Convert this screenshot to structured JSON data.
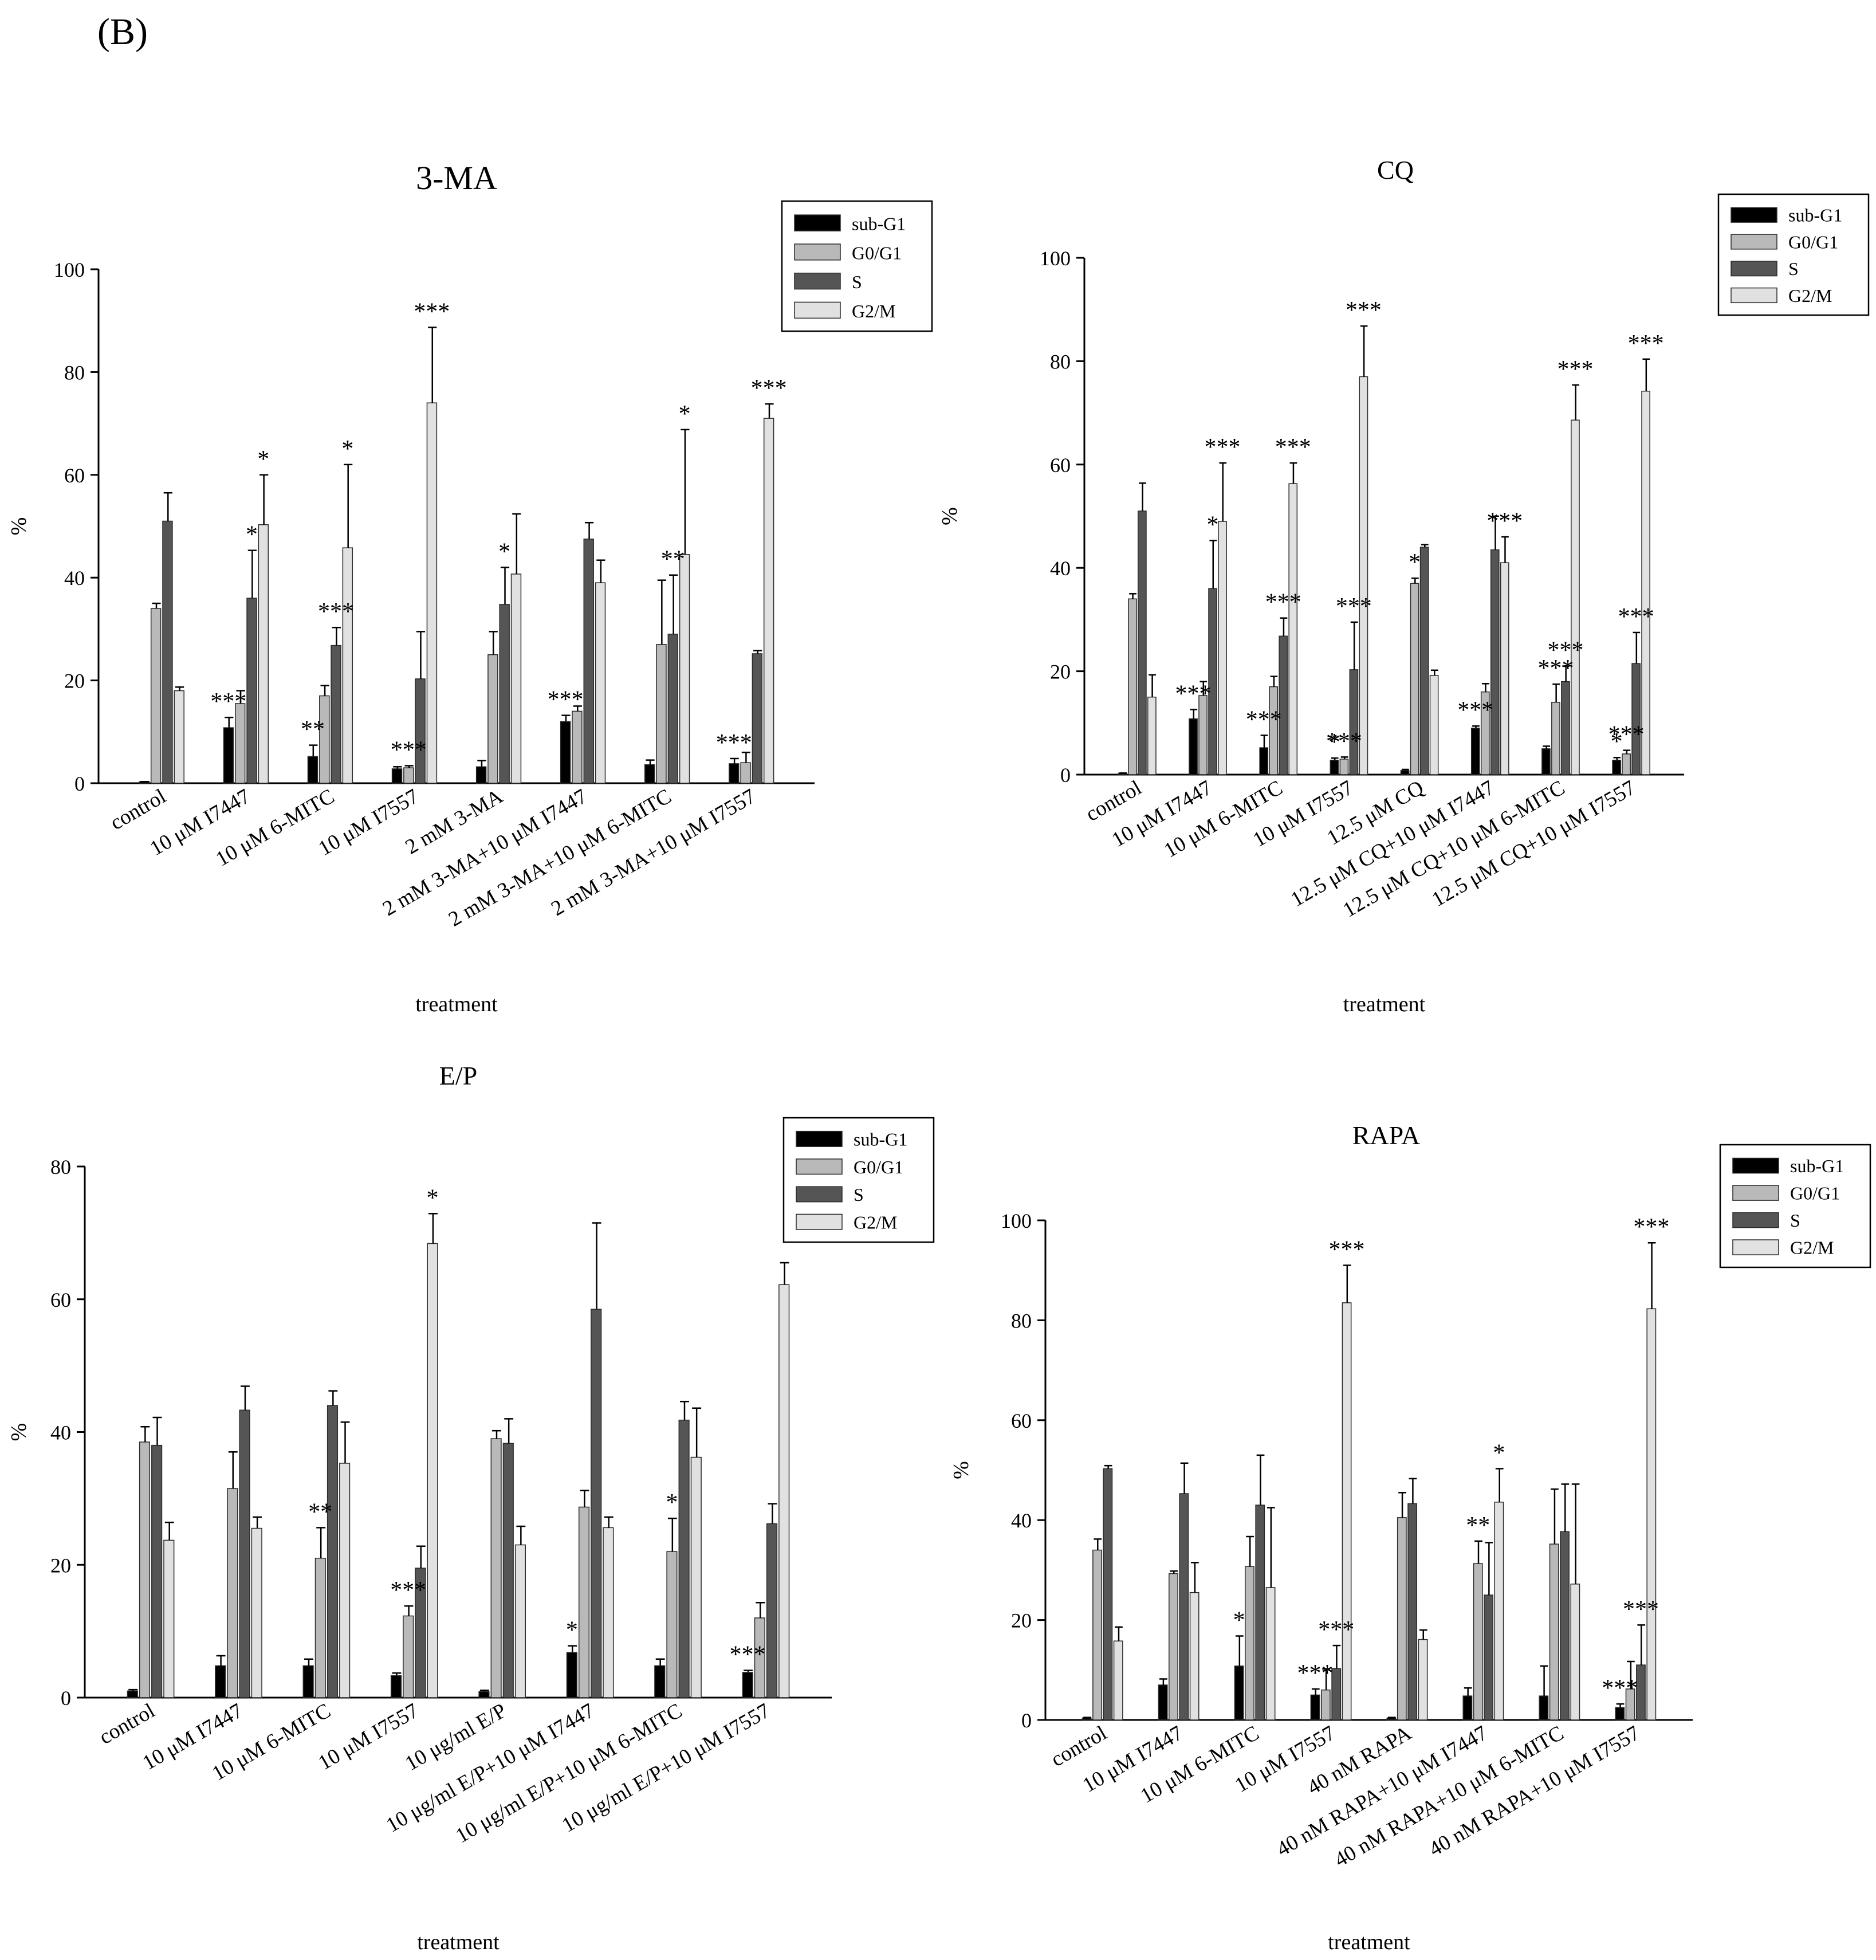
{
  "panel_label": "(B)",
  "colors": {
    "sub-G1": "#000000",
    "G0/G1": "#b9b9b9",
    "S": "#555555",
    "G2/M": "#e1e1e1",
    "stroke": "#2a2a2a"
  },
  "chart_data": [
    {
      "type": "bar",
      "title": "3-MA",
      "xlabel": "treatment",
      "ylabel": "%",
      "ylim": [
        0,
        100
      ],
      "yticks": [
        0,
        20,
        40,
        60,
        80,
        100
      ],
      "legend_position": "top-right",
      "legend": [
        "sub-G1",
        "G0/G1",
        "S",
        "G2/M"
      ],
      "categories": [
        "control",
        "10 μM I7447",
        "10 μM 6-MITC",
        "10 μM I7557",
        "2 mM 3-MA",
        "2 mM 3-MA+10 μM I7447",
        "2 mM 3-MA+10 μM 6-MITC",
        "2 mM 3-MA+10 μM I7557"
      ],
      "series": [
        {
          "name": "sub-G1",
          "values": [
            0.3,
            10.8,
            5.2,
            2.8,
            3.2,
            12.0,
            3.6,
            3.8
          ],
          "errors": [
            0,
            2,
            2.2,
            0.4,
            1.2,
            1.2,
            0.9,
            1.0
          ]
        },
        {
          "name": "G0/G1",
          "values": [
            34,
            15.5,
            17,
            3,
            25,
            14,
            27,
            4
          ],
          "errors": [
            1,
            2.5,
            2,
            0.4,
            4.5,
            1,
            12.5,
            2
          ]
        },
        {
          "name": "S",
          "values": [
            51,
            36,
            26.8,
            20.3,
            34.8,
            47.5,
            29,
            25.2
          ],
          "errors": [
            5.5,
            9.3,
            3.5,
            9.2,
            7.2,
            3.2,
            11.5,
            0.6
          ]
        },
        {
          "name": "G2/M",
          "values": [
            18,
            50.3,
            45.8,
            74,
            40.7,
            39,
            44.5,
            71
          ],
          "errors": [
            0.7,
            9.7,
            16.2,
            14.7,
            11.7,
            4.4,
            24.3,
            2.8
          ]
        }
      ],
      "annotations": [
        {
          "category": 1,
          "series": 0,
          "text": "***"
        },
        {
          "category": 1,
          "series": 2,
          "text": "*"
        },
        {
          "category": 1,
          "series": 3,
          "text": "*"
        },
        {
          "category": 2,
          "series": 0,
          "text": "**"
        },
        {
          "category": 2,
          "series": 2,
          "text": "***"
        },
        {
          "category": 2,
          "series": 3,
          "text": "*"
        },
        {
          "category": 3,
          "series": 1,
          "text": "***"
        },
        {
          "category": 3,
          "series": 3,
          "text": "***"
        },
        {
          "category": 4,
          "series": 2,
          "text": "*"
        },
        {
          "category": 5,
          "series": 0,
          "text": "***"
        },
        {
          "category": 6,
          "series": 2,
          "text": "**"
        },
        {
          "category": 6,
          "series": 3,
          "text": "*"
        },
        {
          "category": 7,
          "series": 0,
          "text": "***"
        },
        {
          "category": 7,
          "series": 3,
          "text": "***"
        }
      ]
    },
    {
      "type": "bar",
      "title": "CQ",
      "xlabel": "treatment",
      "ylabel": "%",
      "ylim": [
        0,
        100
      ],
      "yticks": [
        0,
        20,
        40,
        60,
        80,
        100
      ],
      "legend_position": "top-right",
      "legend": [
        "sub-G1",
        "G0/G1",
        "S",
        "G2/M"
      ],
      "categories": [
        "control",
        "10 μM I7447",
        "10 μM 6-MITC",
        "10 μM I7557",
        "12.5 μM CQ",
        "12.5 μM CQ+10 μM I7447",
        "12.5 μM CQ+10 μM 6-MITC",
        "12.5 μM CQ+10 μM I7557"
      ],
      "series": [
        {
          "name": "sub-G1",
          "values": [
            0.3,
            10.8,
            5.2,
            2.8,
            0.8,
            9.0,
            5.0,
            2.8
          ],
          "errors": [
            0,
            1.8,
            2.4,
            0.4,
            0.2,
            0.4,
            0.5,
            0.5
          ]
        },
        {
          "name": "G0/G1",
          "values": [
            34,
            15.3,
            17,
            3,
            37,
            16,
            14,
            4
          ],
          "errors": [
            1,
            2.7,
            2,
            0.4,
            1,
            1.6,
            3.5,
            0.7
          ]
        },
        {
          "name": "S",
          "values": [
            51,
            36,
            26.8,
            20.3,
            44,
            43.5,
            18,
            21.5
          ],
          "errors": [
            5.4,
            9.3,
            3.5,
            9.2,
            0.5,
            6.5,
            3,
            6
          ]
        },
        {
          "name": "G2/M",
          "values": [
            15,
            49,
            56.3,
            77,
            19.2,
            41,
            68.6,
            74.2
          ],
          "errors": [
            4.3,
            11.3,
            4,
            9.8,
            1,
            5,
            6.8,
            6.2
          ]
        }
      ],
      "annotations": [
        {
          "category": 1,
          "series": 0,
          "text": "***"
        },
        {
          "category": 1,
          "series": 2,
          "text": "*"
        },
        {
          "category": 1,
          "series": 3,
          "text": "***"
        },
        {
          "category": 2,
          "series": 0,
          "text": "***"
        },
        {
          "category": 2,
          "series": 2,
          "text": "***"
        },
        {
          "category": 2,
          "series": 3,
          "text": "***"
        },
        {
          "category": 3,
          "series": 0,
          "text": "*"
        },
        {
          "category": 3,
          "series": 1,
          "text": "***"
        },
        {
          "category": 3,
          "series": 2,
          "text": "***"
        },
        {
          "category": 3,
          "series": 3,
          "text": "***"
        },
        {
          "category": 4,
          "series": 1,
          "text": "*"
        },
        {
          "category": 5,
          "series": 0,
          "text": "***"
        },
        {
          "category": 5,
          "series": 3,
          "text": "***"
        },
        {
          "category": 6,
          "series": 1,
          "text": "***"
        },
        {
          "category": 6,
          "series": 2,
          "text": "***"
        },
        {
          "category": 6,
          "series": 3,
          "text": "***"
        },
        {
          "category": 7,
          "series": 0,
          "text": "*"
        },
        {
          "category": 7,
          "series": 1,
          "text": "***"
        },
        {
          "category": 7,
          "series": 2,
          "text": "***"
        },
        {
          "category": 7,
          "series": 3,
          "text": "***"
        }
      ]
    },
    {
      "type": "bar",
      "title": "E/P",
      "xlabel": "treatment",
      "ylabel": "%",
      "ylim": [
        0,
        80
      ],
      "yticks": [
        0,
        20,
        40,
        60,
        80
      ],
      "legend_position": "top-right",
      "legend": [
        "sub-G1",
        "G0/G1",
        "S",
        "G2/M"
      ],
      "categories": [
        "control",
        "10 μM I7447",
        "10 μM 6-MITC",
        "10 μM I7557",
        "10 μg/ml E/P",
        "10 μg/ml E/P+10 μM I7447",
        "10 μg/ml E/P+10 μM 6-MITC",
        "10 μg/ml E/P+10 μM I7557"
      ],
      "series": [
        {
          "name": "sub-G1",
          "values": [
            1.0,
            4.8,
            4.8,
            3.3,
            0.9,
            6.8,
            4.8,
            3.8
          ],
          "errors": [
            0.2,
            1.5,
            1.0,
            0.4,
            0.2,
            1.0,
            1.0,
            0.3
          ]
        },
        {
          "name": "G0/G1",
          "values": [
            38.5,
            31.5,
            21,
            12.3,
            39,
            28.7,
            22,
            12
          ],
          "errors": [
            2.3,
            5.5,
            4.6,
            1.5,
            1.2,
            2.5,
            5,
            2.3
          ]
        },
        {
          "name": "S",
          "values": [
            38,
            43.3,
            44,
            19.5,
            38.3,
            58.5,
            41.8,
            26.2
          ],
          "errors": [
            4.2,
            3.6,
            2.2,
            3.3,
            3.7,
            13,
            2.8,
            3
          ]
        },
        {
          "name": "G2/M",
          "values": [
            23.7,
            25.5,
            35.3,
            68.4,
            23,
            25.6,
            36.2,
            62.2
          ],
          "errors": [
            2.7,
            1.7,
            6.2,
            4.5,
            2.8,
            1.6,
            7.4,
            3.3
          ]
        }
      ],
      "annotations": [
        {
          "category": 2,
          "series": 1,
          "text": "**"
        },
        {
          "category": 3,
          "series": 1,
          "text": "***"
        },
        {
          "category": 3,
          "series": 3,
          "text": "*"
        },
        {
          "category": 5,
          "series": 0,
          "text": "*"
        },
        {
          "category": 6,
          "series": 1,
          "text": "*"
        },
        {
          "category": 7,
          "series": 0,
          "text": "***"
        }
      ]
    },
    {
      "type": "bar",
      "title": "RAPA",
      "xlabel": "treatment",
      "ylabel": "%",
      "ylim": [
        0,
        100
      ],
      "yticks": [
        0,
        20,
        40,
        60,
        80,
        100
      ],
      "legend_position": "top-right",
      "legend": [
        "sub-G1",
        "G0/G1",
        "S",
        "G2/M"
      ],
      "categories": [
        "control",
        "10 μM I7447",
        "10 μM 6-MITC",
        "10 μM I7557",
        "40 nM RAPA",
        "40 nM RAPA+10 μM I7447",
        "40 nM RAPA+10 μM 6-MITC",
        "40 nM RAPA+10 μM I7557"
      ],
      "series": [
        {
          "name": "sub-G1",
          "values": [
            0.4,
            7.0,
            10.8,
            5.0,
            0.4,
            4.8,
            4.8,
            2.5
          ],
          "errors": [
            0.1,
            1.2,
            6,
            1.2,
            0.1,
            1.6,
            6,
            0.7
          ]
        },
        {
          "name": "G0/G1",
          "values": [
            34,
            29.3,
            30.7,
            6,
            40.5,
            31.3,
            35.2,
            6.2
          ],
          "errors": [
            2.2,
            0.5,
            6,
            4.2,
            5,
            4.5,
            11,
            5.5
          ]
        },
        {
          "name": "S",
          "values": [
            50.3,
            45.3,
            43,
            10.3,
            43.3,
            25,
            37.7,
            11
          ],
          "errors": [
            0.6,
            6.1,
            10,
            4.6,
            5,
            10.5,
            9.5,
            8
          ]
        },
        {
          "name": "G2/M",
          "values": [
            15.8,
            25.5,
            26.5,
            83.5,
            16.1,
            43.6,
            27.2,
            82.3
          ],
          "errors": [
            2.8,
            6,
            16,
            7.5,
            1.9,
            6.7,
            20,
            13.2
          ]
        }
      ],
      "annotations": [
        {
          "category": 2,
          "series": 0,
          "text": "*"
        },
        {
          "category": 3,
          "series": 0,
          "text": "***"
        },
        {
          "category": 3,
          "series": 2,
          "text": "***"
        },
        {
          "category": 3,
          "series": 3,
          "text": "***"
        },
        {
          "category": 5,
          "series": 1,
          "text": "**"
        },
        {
          "category": 5,
          "series": 3,
          "text": "*"
        },
        {
          "category": 7,
          "series": 0,
          "text": "***"
        },
        {
          "category": 7,
          "series": 2,
          "text": "***"
        },
        {
          "category": 7,
          "series": 3,
          "text": "***"
        }
      ]
    }
  ]
}
